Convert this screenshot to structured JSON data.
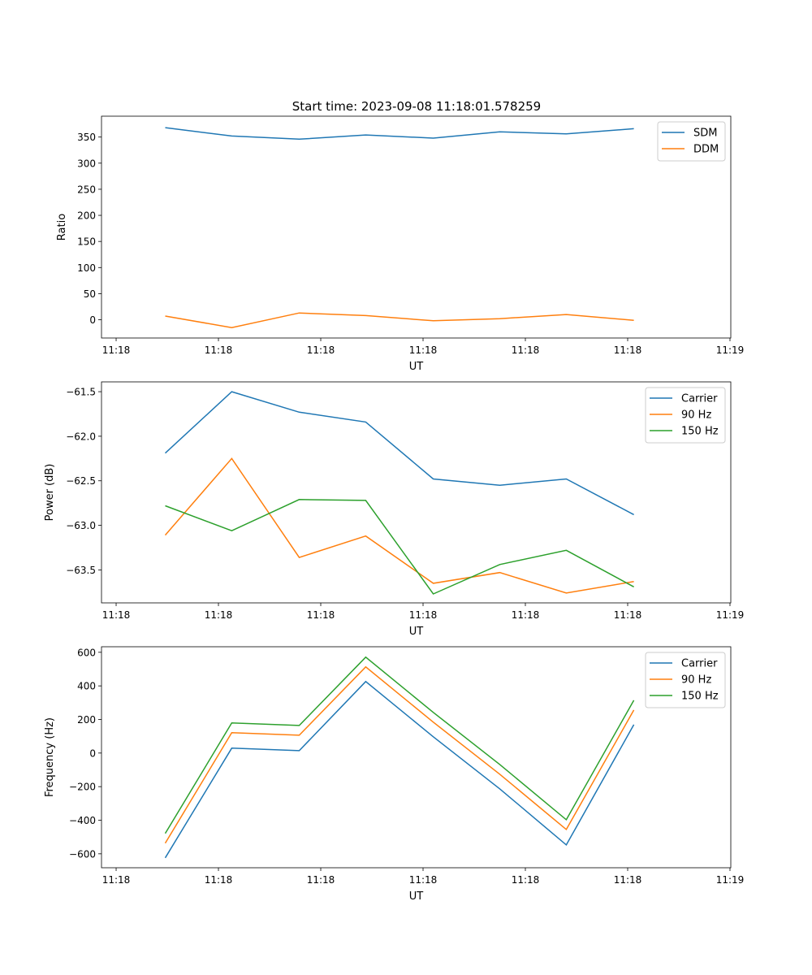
{
  "title": "Start time: 2023-09-08 11:18:01.578259",
  "colors": {
    "blue": "#1f77b4",
    "orange": "#ff7f0e",
    "green": "#2ca02c"
  },
  "chart_data": [
    {
      "type": "line",
      "xlabel": "UT",
      "ylabel": "Ratio",
      "x_seconds_after_11_18": [
        4.8,
        11.3,
        17.9,
        24.4,
        31.0,
        37.5,
        44.0,
        50.6
      ],
      "xlim": [
        -1.43,
        60.08
      ],
      "xticks": [
        0,
        10,
        20,
        30,
        40,
        50,
        60
      ],
      "xtick_labels": [
        "11:18",
        "11:18",
        "11:18",
        "11:18",
        "11:18",
        "11:18",
        "11:19"
      ],
      "ylim": [
        -35,
        390
      ],
      "yticks": [
        0,
        50,
        100,
        150,
        200,
        250,
        300,
        350
      ],
      "legend": "top-right",
      "series": [
        {
          "name": "SDM",
          "color": "#1f77b4",
          "values": [
            368,
            352,
            346,
            354,
            348,
            360,
            356,
            366
          ]
        },
        {
          "name": "DDM",
          "color": "#ff7f0e",
          "values": [
            7,
            -15,
            13,
            8,
            -2,
            2,
            10,
            -1
          ]
        }
      ]
    },
    {
      "type": "line",
      "xlabel": "UT",
      "ylabel": "Power (dB)",
      "x_seconds_after_11_18": [
        4.8,
        11.3,
        17.9,
        24.4,
        31.0,
        37.5,
        44.0,
        50.6
      ],
      "xlim": [
        -1.43,
        60.08
      ],
      "xticks": [
        0,
        10,
        20,
        30,
        40,
        50,
        60
      ],
      "xtick_labels": [
        "11:18",
        "11:18",
        "11:18",
        "11:18",
        "11:18",
        "11:18",
        "11:19"
      ],
      "ylim": [
        -63.87,
        -61.39
      ],
      "yticks": [
        -63.5,
        -63.0,
        -62.5,
        -62.0,
        -61.5
      ],
      "ytick_labels": [
        "−63.5",
        "−63.0",
        "−62.5",
        "−62.0",
        "−61.5"
      ],
      "legend": "top-right",
      "series": [
        {
          "name": "Carrier",
          "color": "#1f77b4",
          "values": [
            -62.19,
            -61.5,
            -61.73,
            -61.84,
            -62.48,
            -62.55,
            -62.48,
            -62.88
          ]
        },
        {
          "name": "90 Hz",
          "color": "#ff7f0e",
          "values": [
            -63.11,
            -62.25,
            -63.36,
            -63.12,
            -63.65,
            -63.53,
            -63.76,
            -63.63
          ]
        },
        {
          "name": "150 Hz",
          "color": "#2ca02c",
          "values": [
            -62.78,
            -63.06,
            -62.71,
            -62.72,
            -63.77,
            -63.44,
            -63.28,
            -63.69
          ]
        }
      ]
    },
    {
      "type": "line",
      "xlabel": "UT",
      "ylabel": "Frequency (Hz)",
      "x_seconds_after_11_18": [
        4.8,
        11.3,
        17.9,
        24.4,
        31.0,
        37.5,
        44.0,
        50.6
      ],
      "xlim": [
        -1.43,
        60.08
      ],
      "xticks": [
        0,
        10,
        20,
        30,
        40,
        50,
        60
      ],
      "xtick_labels": [
        "11:18",
        "11:18",
        "11:18",
        "11:18",
        "11:18",
        "11:18",
        "11:19"
      ],
      "ylim": [
        -683,
        633
      ],
      "yticks": [
        -600,
        -400,
        -200,
        0,
        200,
        400,
        600
      ],
      "ytick_labels": [
        "−600",
        "−400",
        "−200",
        "0",
        "200",
        "400",
        "600"
      ],
      "legend": "top-right",
      "series": [
        {
          "name": "Carrier",
          "color": "#1f77b4",
          "values": [
            -624,
            29,
            14,
            426,
            97,
            -213,
            -547,
            169
          ]
        },
        {
          "name": "90 Hz",
          "color": "#ff7f0e",
          "values": [
            -537,
            121,
            106,
            513,
            184,
            -126,
            -455,
            256
          ]
        },
        {
          "name": "150 Hz",
          "color": "#2ca02c",
          "values": [
            -479,
            179,
            164,
            571,
            242,
            -68,
            -397,
            314
          ]
        }
      ]
    }
  ]
}
